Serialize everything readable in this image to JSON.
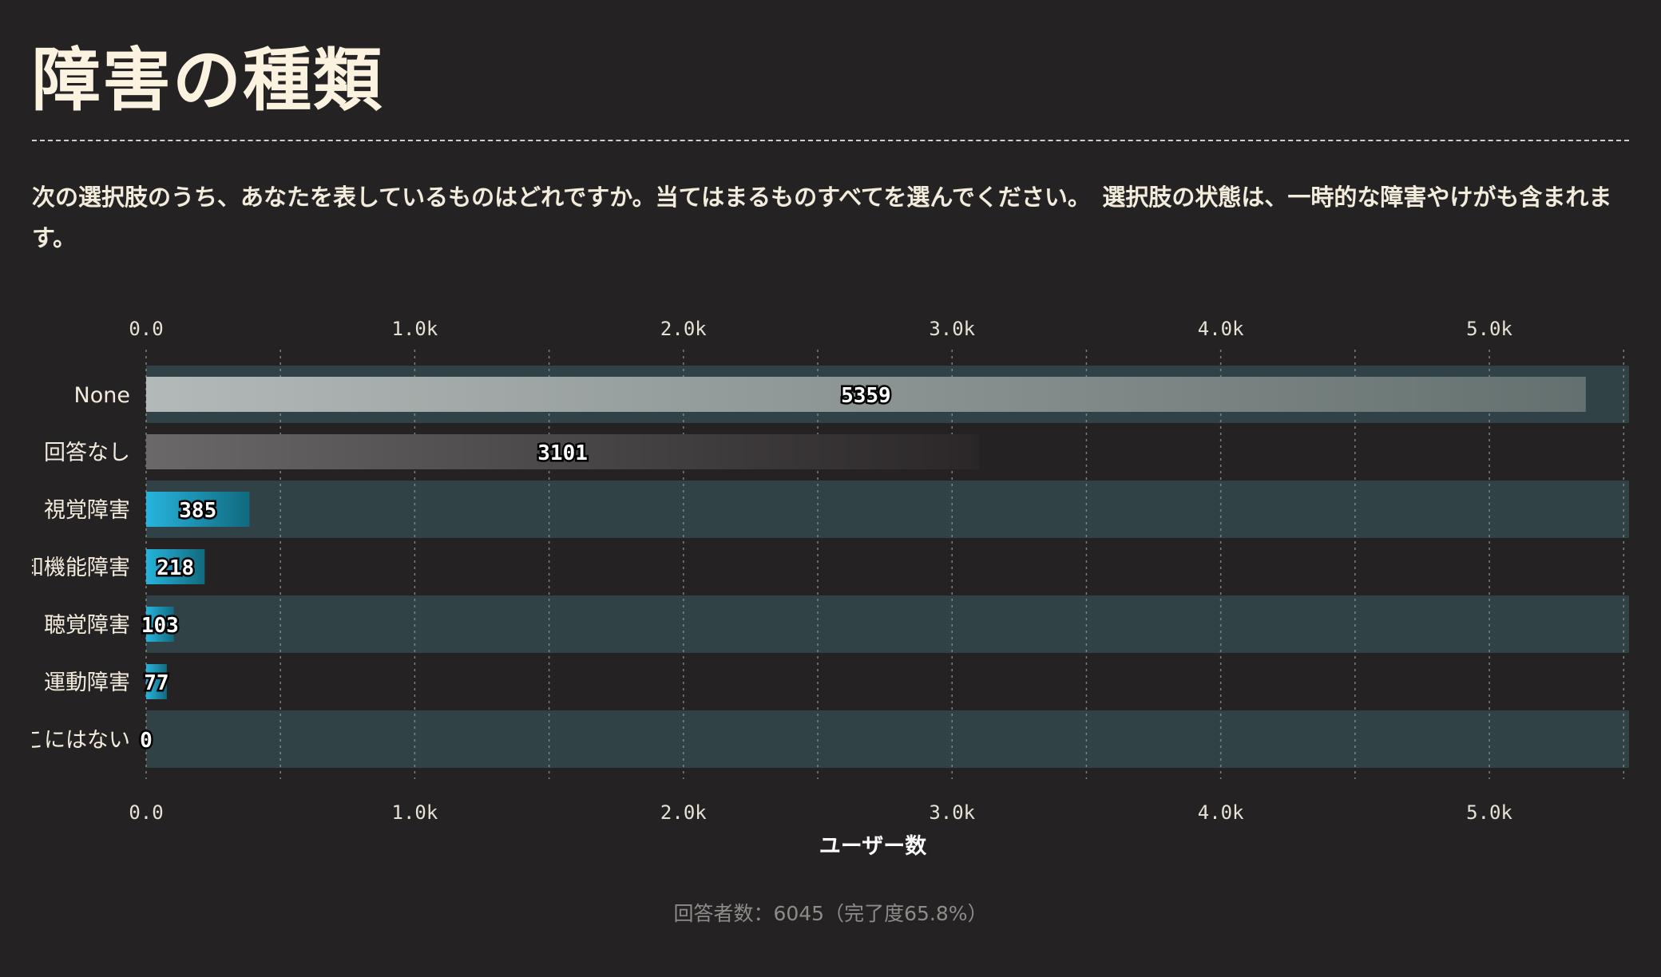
{
  "page": {
    "title": "障害の種類",
    "subtitle": "次の選択肢のうち、あなたを表しているものはどれですか。当てはまるものすべてを選んでください。　選択肢の状態は、一時的な障害やけがも含まれます。",
    "footer": "回答者数：6045（完了度65.8%）"
  },
  "chart_data": {
    "type": "bar",
    "orientation": "horizontal",
    "categories": [
      "None",
      "回答なし",
      "視覚障害",
      "認知機能障害",
      "聴覚障害",
      "運動障害",
      "ここにはない"
    ],
    "values": [
      5359,
      3101,
      385,
      218,
      103,
      77,
      0
    ],
    "xlabel": "ユーザー数",
    "xlim": [
      0,
      5520
    ],
    "x_ticks": [
      0,
      1000,
      2000,
      3000,
      4000,
      5000
    ],
    "x_tick_labels": [
      "0.0",
      "1.0k",
      "2.0k",
      "3.0k",
      "4.0k",
      "5.0k"
    ],
    "grid": true,
    "axis_ticks_top_and_bottom": true
  },
  "colors": {
    "background": "#252224",
    "band": "#304246",
    "none_bar_start": "#b3b9b8",
    "none_bar_end": "#64706f",
    "noanswer_bar_start": "#6a6869",
    "noanswer_bar_end": "#2b2729",
    "disability_bar_start": "#27b4dc",
    "disability_bar_end": "#11697e"
  }
}
